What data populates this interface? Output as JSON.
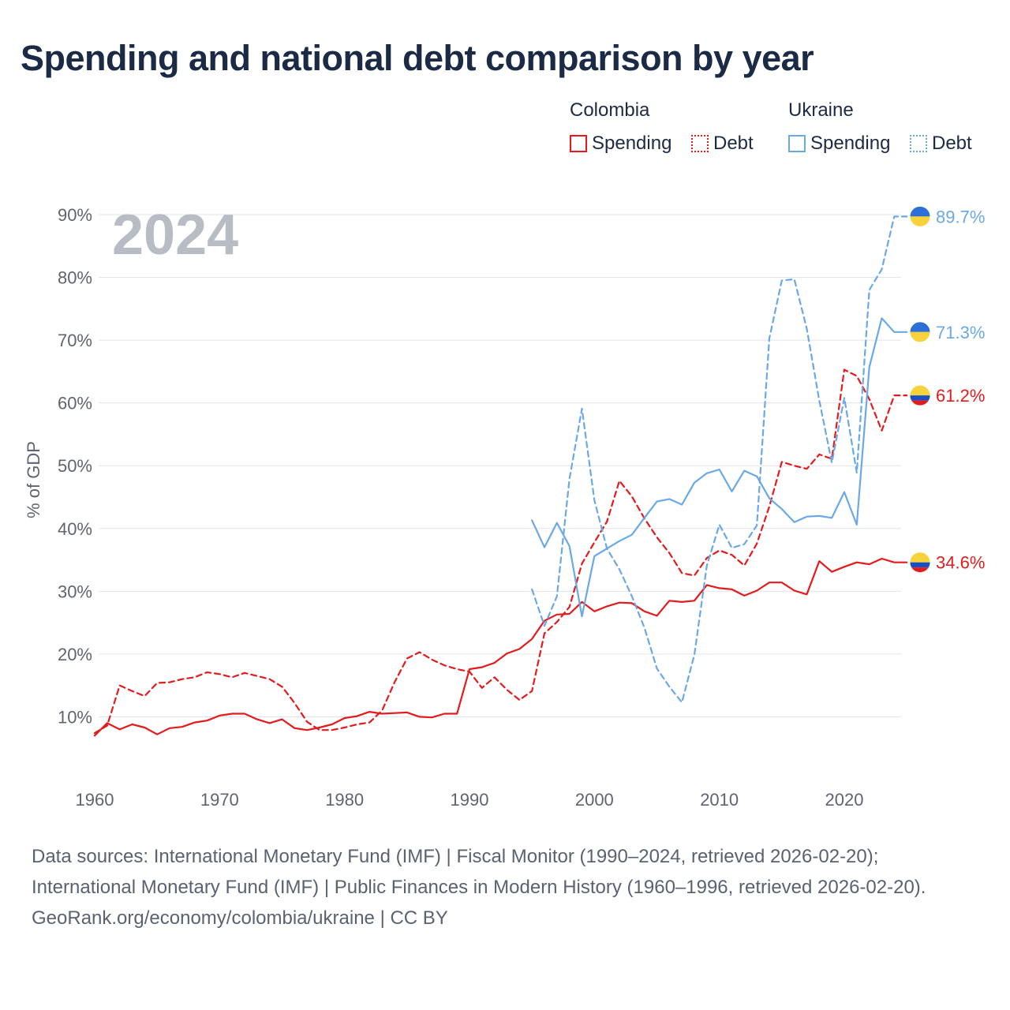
{
  "title": "Spending and national debt comparison by year",
  "year_watermark": "2024",
  "legend": {
    "groups": [
      {
        "country": "Colombia",
        "color": "#e41a1c",
        "items": [
          {
            "label": "Spending",
            "style": "solid"
          },
          {
            "label": "Debt",
            "style": "dotted"
          }
        ]
      },
      {
        "country": "Ukraine",
        "color": "#6aa8e6",
        "items": [
          {
            "label": "Spending",
            "style": "solid"
          },
          {
            "label": "Debt",
            "style": "dotted"
          }
        ]
      }
    ]
  },
  "chart_data": {
    "type": "line",
    "ylabel": "% of GDP",
    "xlim": [
      1960,
      2026
    ],
    "ylim": [
      0,
      90
    ],
    "x_ticks": [
      1960,
      1970,
      1980,
      1990,
      2000,
      2010,
      2020
    ],
    "y_ticks": [
      10,
      20,
      30,
      40,
      50,
      60,
      70,
      80,
      90
    ],
    "y_tick_labels": [
      "10%",
      "20%",
      "30%",
      "40%",
      "50%",
      "60%",
      "70%",
      "80%",
      "90%"
    ],
    "grid": true,
    "series": [
      {
        "name": "Colombia Spending",
        "color": "#e41a1c",
        "dash": "solid",
        "end_label": "34.6%",
        "flag": "colombia",
        "x": [
          1960,
          1961,
          1962,
          1963,
          1964,
          1965,
          1966,
          1967,
          1968,
          1969,
          1970,
          1971,
          1972,
          1973,
          1974,
          1975,
          1976,
          1977,
          1978,
          1979,
          1980,
          1981,
          1982,
          1983,
          1984,
          1985,
          1986,
          1987,
          1988,
          1989,
          1990,
          1991,
          1992,
          1993,
          1994,
          1995,
          1996,
          1997,
          1998,
          1999,
          2000,
          2001,
          2002,
          2003,
          2004,
          2005,
          2006,
          2007,
          2008,
          2009,
          2010,
          2011,
          2012,
          2013,
          2014,
          2015,
          2016,
          2017,
          2018,
          2019,
          2020,
          2021,
          2022,
          2023,
          2024,
          2025
        ],
        "values": [
          7.0,
          9.0,
          8.0,
          8.8,
          8.3,
          7.2,
          8.2,
          8.4,
          9.1,
          9.4,
          10.2,
          10.5,
          10.5,
          9.6,
          9.0,
          9.6,
          8.2,
          7.9,
          8.3,
          8.8,
          9.8,
          10.1,
          10.8,
          10.5,
          10.6,
          10.7,
          10.0,
          9.9,
          10.5,
          10.5,
          17.6,
          17.9,
          18.6,
          20.1,
          20.8,
          22.4,
          25.3,
          26.3,
          26.4,
          28.3,
          26.8,
          27.6,
          28.2,
          28.1,
          26.8,
          26.1,
          28.5,
          28.3,
          28.5,
          31.0,
          30.5,
          30.3,
          29.3,
          30.1,
          31.4,
          31.4,
          30.1,
          29.5,
          34.8,
          33.1,
          33.9,
          34.6,
          34.3,
          35.2,
          34.6,
          34.6
        ]
      },
      {
        "name": "Colombia Debt",
        "color": "#e41a1c",
        "dash": "dashed",
        "end_label": "61.2%",
        "flag": "colombia",
        "x": [
          1960,
          1961,
          1962,
          1963,
          1964,
          1965,
          1966,
          1967,
          1968,
          1969,
          1970,
          1971,
          1972,
          1973,
          1974,
          1975,
          1976,
          1977,
          1978,
          1979,
          1980,
          1981,
          1982,
          1983,
          1984,
          1985,
          1986,
          1987,
          1988,
          1989,
          1990,
          1991,
          1992,
          1993,
          1994,
          1995,
          1996,
          1997,
          1998,
          1999,
          2000,
          2001,
          2002,
          2003,
          2004,
          2005,
          2006,
          2007,
          2008,
          2009,
          2010,
          2011,
          2012,
          2013,
          2014,
          2015,
          2016,
          2017,
          2018,
          2019,
          2020,
          2021,
          2022,
          2023,
          2024,
          2025
        ],
        "values": [
          7.4,
          8.6,
          15.0,
          14.1,
          13.3,
          15.4,
          15.5,
          16.0,
          16.3,
          17.1,
          16.8,
          16.3,
          17.0,
          16.5,
          16.0,
          14.8,
          12.2,
          9.2,
          7.9,
          7.9,
          8.3,
          8.8,
          9.1,
          11.0,
          15.5,
          19.3,
          20.3,
          19.1,
          18.2,
          17.6,
          17.2,
          14.6,
          16.3,
          14.3,
          12.7,
          14.1,
          23.3,
          25.1,
          27.5,
          34.4,
          37.8,
          41.1,
          47.6,
          45.1,
          41.6,
          38.6,
          36.1,
          32.9,
          32.5,
          35.3,
          36.5,
          35.8,
          34.1,
          37.6,
          43.5,
          50.6,
          50.0,
          49.5,
          51.8,
          51.1,
          65.3,
          64.3,
          60.6,
          55.6,
          61.2,
          61.2
        ]
      },
      {
        "name": "Ukraine Spending",
        "color": "#6aa8e6",
        "dash": "solid",
        "end_label": "71.3%",
        "flag": "ukraine",
        "x": [
          1995,
          1996,
          1997,
          1998,
          1999,
          2000,
          2001,
          2002,
          2003,
          2004,
          2005,
          2006,
          2007,
          2008,
          2009,
          2010,
          2011,
          2012,
          2013,
          2014,
          2015,
          2016,
          2017,
          2018,
          2019,
          2020,
          2021,
          2022,
          2023,
          2024,
          2025
        ],
        "values": [
          41.3,
          37.0,
          40.9,
          37.2,
          26.0,
          35.6,
          36.8,
          38.0,
          39.0,
          41.7,
          44.3,
          44.7,
          43.8,
          47.3,
          48.8,
          49.4,
          45.9,
          49.2,
          48.3,
          44.8,
          43.1,
          41.0,
          41.9,
          42.0,
          41.7,
          45.8,
          40.6,
          65.7,
          73.5,
          71.3,
          71.3
        ]
      },
      {
        "name": "Ukraine Debt",
        "color": "#6aa8e6",
        "dash": "dashed",
        "end_label": "89.7%",
        "flag": "ukraine",
        "x": [
          1995,
          1996,
          1997,
          1998,
          1999,
          2000,
          2001,
          2002,
          2003,
          2004,
          2005,
          2006,
          2007,
          2008,
          2009,
          2010,
          2011,
          2012,
          2013,
          2014,
          2015,
          2016,
          2017,
          2018,
          2019,
          2020,
          2021,
          2022,
          2023,
          2024,
          2025
        ],
        "values": [
          30.3,
          24.5,
          29.2,
          47.9,
          59.1,
          44.5,
          36.8,
          33.5,
          29.2,
          24.2,
          17.7,
          14.8,
          12.3,
          19.9,
          34.1,
          40.6,
          36.9,
          37.5,
          40.5,
          70.3,
          79.5,
          79.7,
          71.8,
          60.4,
          50.5,
          60.8,
          48.9,
          78.0,
          81.3,
          89.7,
          89.7
        ]
      }
    ]
  },
  "footer": {
    "sources": "Data sources: International Monetary Fund (IMF) | Fiscal Monitor (1990–2024, retrieved 2026-02-20); International Monetary Fund (IMF) | Public Finances in Modern History (1960–1996, retrieved 2026-02-20).",
    "credit": "GeoRank.org/economy/colombia/ukraine | CC BY"
  }
}
